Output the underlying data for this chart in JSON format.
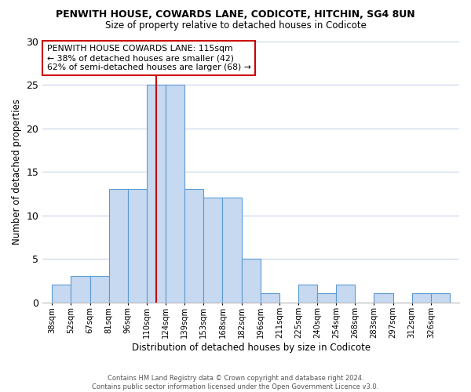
{
  "title": "PENWITH HOUSE, COWARDS LANE, CODICOTE, HITCHIN, SG4 8UN",
  "subtitle": "Size of property relative to detached houses in Codicote",
  "xlabel": "Distribution of detached houses by size in Codicote",
  "ylabel": "Number of detached properties",
  "categories": [
    "38sqm",
    "52sqm",
    "67sqm",
    "81sqm",
    "96sqm",
    "110sqm",
    "124sqm",
    "139sqm",
    "153sqm",
    "168sqm",
    "182sqm",
    "196sqm",
    "211sqm",
    "225sqm",
    "240sqm",
    "254sqm",
    "268sqm",
    "283sqm",
    "297sqm",
    "312sqm",
    "326sqm"
  ],
  "heights": [
    2,
    3,
    3,
    13,
    13,
    25,
    25,
    13,
    12,
    12,
    5,
    1,
    0,
    2,
    1,
    2,
    0,
    1,
    0,
    1,
    1
  ],
  "bar_color": "#c6d9f0",
  "bar_edge_color": "#5b9bd5",
  "annotation_box_text": "PENWITH HOUSE COWARDS LANE: 115sqm\n← 38% of detached houses are smaller (42)\n62% of semi-detached houses are larger (68) →",
  "annotation_box_color": "#ffffff",
  "annotation_box_edge_color": "#cc0000",
  "ylim": [
    0,
    30
  ],
  "yticks": [
    0,
    5,
    10,
    15,
    20,
    25,
    30
  ],
  "vline_color": "#cc0000",
  "vline_x": 5.5,
  "footer_line1": "Contains HM Land Registry data © Crown copyright and database right 2024.",
  "footer_line2": "Contains public sector information licensed under the Open Government Licence v3.0.",
  "bg_color": "#ffffff",
  "grid_color": "#c8d4e8"
}
